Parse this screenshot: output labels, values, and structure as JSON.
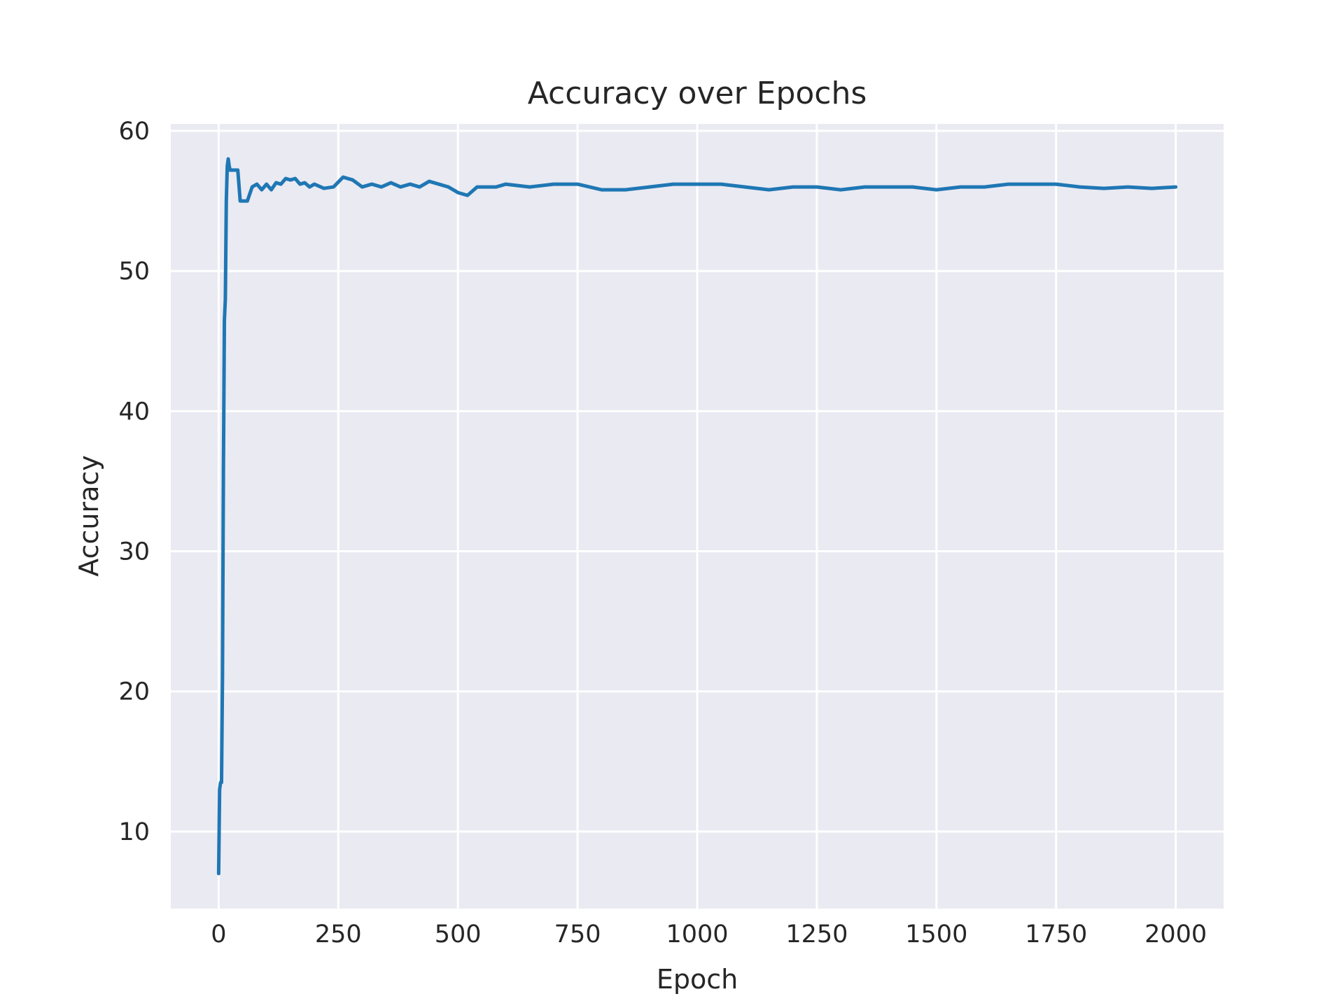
{
  "colors": {
    "background": "#eaeaf2",
    "grid": "#ffffff",
    "line": "#1f77b4",
    "text": "#262626"
  },
  "chart_data": {
    "type": "line",
    "title": "Accuracy over Epochs",
    "xlabel": "Epoch",
    "ylabel": "Accuracy",
    "xlim": [
      -100,
      2100
    ],
    "ylim": [
      4.5,
      60.5
    ],
    "xticks": [
      0,
      250,
      500,
      750,
      1000,
      1250,
      1500,
      1750,
      2000
    ],
    "xtick_labels": [
      "0",
      "250",
      "500",
      "750",
      "1000",
      "1250",
      "1500",
      "1750",
      "2000"
    ],
    "yticks": [
      10,
      20,
      30,
      40,
      50,
      60
    ],
    "ytick_labels": [
      "10",
      "20",
      "30",
      "40",
      "50",
      "60"
    ],
    "grid": true,
    "legend": "none",
    "series": [
      {
        "color": "#1f77b4",
        "x": [
          0,
          2,
          4,
          6,
          8,
          10,
          12,
          14,
          16,
          18,
          20,
          22,
          24,
          26,
          28,
          30,
          35,
          40,
          45,
          50,
          55,
          60,
          70,
          80,
          90,
          100,
          110,
          120,
          130,
          140,
          150,
          160,
          170,
          180,
          190,
          200,
          220,
          240,
          260,
          280,
          300,
          320,
          340,
          360,
          380,
          400,
          420,
          440,
          460,
          480,
          500,
          520,
          540,
          560,
          580,
          600,
          650,
          700,
          750,
          800,
          850,
          900,
          950,
          1000,
          1050,
          1100,
          1150,
          1200,
          1250,
          1300,
          1350,
          1400,
          1450,
          1500,
          1550,
          1600,
          1650,
          1700,
          1750,
          1800,
          1850,
          1900,
          1950,
          2000
        ],
        "y": [
          7.0,
          13.0,
          13.5,
          13.5,
          21.0,
          36.0,
          46.5,
          48.0,
          55.0,
          57.5,
          58.0,
          57.5,
          57.2,
          57.2,
          57.2,
          57.2,
          57.2,
          57.2,
          55.0,
          55.0,
          55.0,
          55.0,
          56.0,
          56.2,
          55.8,
          56.2,
          55.8,
          56.3,
          56.2,
          56.6,
          56.5,
          56.6,
          56.2,
          56.3,
          56.0,
          56.2,
          55.9,
          56.0,
          56.7,
          56.5,
          56.0,
          56.2,
          56.0,
          56.3,
          56.0,
          56.2,
          56.0,
          56.4,
          56.2,
          56.0,
          55.6,
          55.4,
          56.0,
          56.0,
          56.0,
          56.2,
          56.0,
          56.2,
          56.2,
          55.8,
          55.8,
          56.0,
          56.2,
          56.2,
          56.2,
          56.0,
          55.8,
          56.0,
          56.0,
          55.8,
          56.0,
          56.0,
          56.0,
          55.8,
          56.0,
          56.0,
          56.2,
          56.2,
          56.2,
          56.0,
          55.9,
          56.0,
          55.9,
          56.0
        ]
      }
    ]
  }
}
